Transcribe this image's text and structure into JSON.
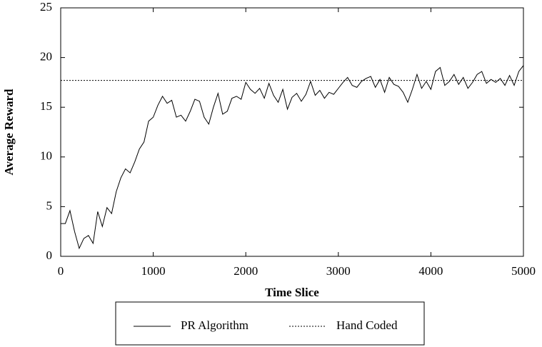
{
  "chart_data": {
    "type": "line",
    "xlabel": "Time Slice",
    "ylabel": "Average Reward",
    "x": [
      0,
      50,
      100,
      150,
      200,
      250,
      300,
      350,
      400,
      450,
      500,
      550,
      600,
      650,
      700,
      750,
      800,
      850,
      900,
      950,
      1000,
      1050,
      1100,
      1150,
      1200,
      1250,
      1300,
      1350,
      1400,
      1450,
      1500,
      1550,
      1600,
      1650,
      1700,
      1750,
      1800,
      1850,
      1900,
      1950,
      2000,
      2050,
      2100,
      2150,
      2200,
      2250,
      2300,
      2350,
      2400,
      2450,
      2500,
      2550,
      2600,
      2650,
      2700,
      2750,
      2800,
      2850,
      2900,
      2950,
      3000,
      3050,
      3100,
      3150,
      3200,
      3250,
      3300,
      3350,
      3400,
      3450,
      3500,
      3550,
      3600,
      3650,
      3700,
      3750,
      3800,
      3850,
      3900,
      3950,
      4000,
      4050,
      4100,
      4150,
      4200,
      4250,
      4300,
      4350,
      4400,
      4450,
      4500,
      4550,
      4600,
      4650,
      4700,
      4750,
      4800,
      4850,
      4900,
      4950,
      5000
    ],
    "series": [
      {
        "name": "PR Algorithm",
        "color": "#000000",
        "style": "solid",
        "values": [
          3.3,
          3.3,
          4.6,
          2.5,
          0.8,
          1.8,
          2.1,
          1.3,
          4.5,
          3.0,
          4.9,
          4.3,
          6.5,
          7.9,
          8.8,
          8.4,
          9.5,
          10.8,
          11.5,
          13.6,
          14.0,
          15.2,
          16.1,
          15.4,
          15.7,
          14.0,
          14.2,
          13.6,
          14.6,
          15.8,
          15.6,
          14.0,
          13.3,
          15.0,
          16.4,
          14.3,
          14.6,
          15.9,
          16.1,
          15.8,
          17.5,
          16.8,
          16.4,
          16.9,
          15.9,
          17.4,
          16.2,
          15.5,
          16.8,
          14.8,
          16.0,
          16.4,
          15.6,
          16.3,
          17.6,
          16.2,
          16.7,
          15.9,
          16.5,
          16.3,
          16.9,
          17.5,
          18.0,
          17.2,
          17.0,
          17.6,
          17.9,
          18.1,
          17.0,
          17.8,
          16.5,
          18.0,
          17.3,
          17.1,
          16.5,
          15.5,
          16.8,
          18.3,
          16.9,
          17.6,
          16.8,
          18.6,
          19.0,
          17.2,
          17.6,
          18.3,
          17.3,
          18.0,
          16.9,
          17.5,
          18.3,
          18.6,
          17.4,
          17.8,
          17.5,
          17.9,
          17.2,
          18.2,
          17.2,
          18.6,
          19.2
        ]
      },
      {
        "name": "Hand Coded",
        "color": "#000000",
        "style": "dotted",
        "x": [
          0,
          5000
        ],
        "values": [
          17.7,
          17.7
        ]
      }
    ],
    "xlim": [
      0,
      5000
    ],
    "xticks": [
      0,
      1000,
      2000,
      3000,
      4000,
      5000
    ],
    "ylim": [
      0,
      25
    ],
    "yticks": [
      0,
      5,
      10,
      15,
      20,
      25
    ]
  }
}
